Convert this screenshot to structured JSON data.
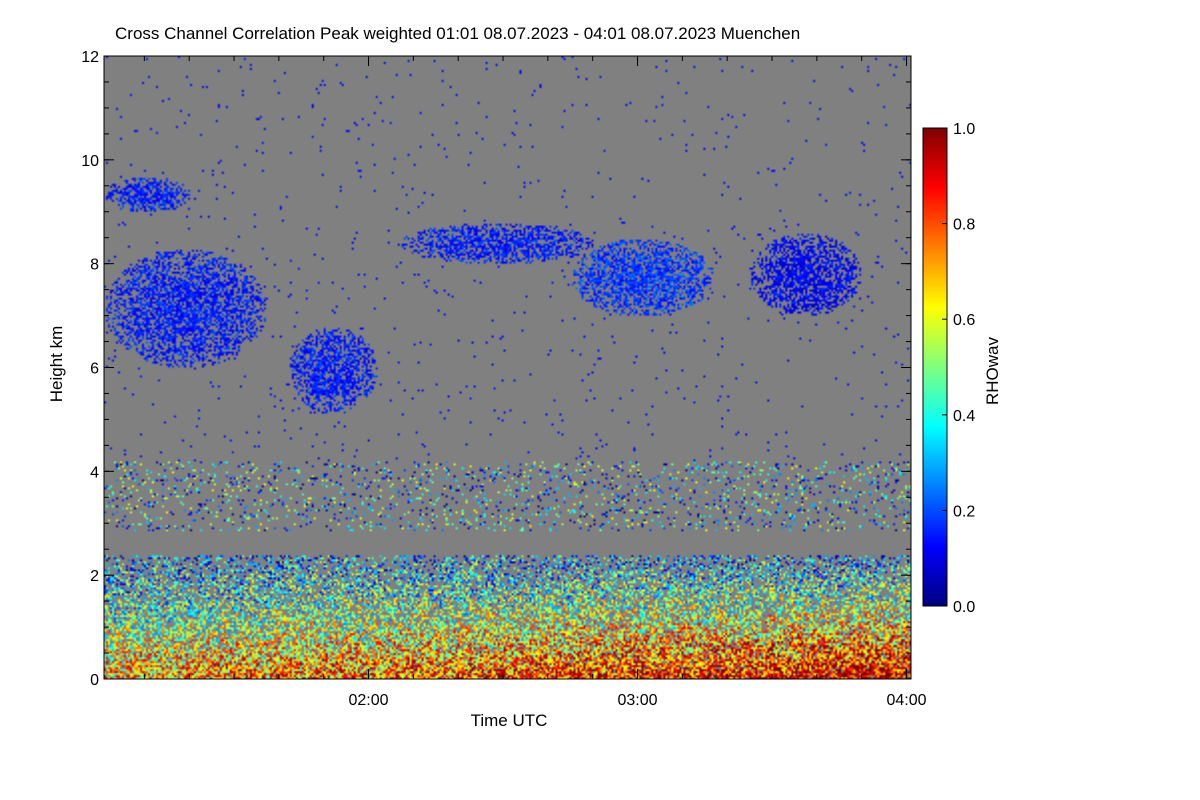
{
  "chart_data": {
    "type": "heatmap",
    "title": "Cross Channel Correlation Peak weighted   01:01 08.07.2023 - 04:01 08.07.2023 Muenchen",
    "xlabel": "Time UTC",
    "ylabel": "Height km",
    "colorbar_label": "RHOwav",
    "x_range": [
      "01:01",
      "04:01"
    ],
    "x_ticks": [
      "02:00",
      "03:00",
      "04:00"
    ],
    "x_tick_minutes_since_0101": [
      59,
      119,
      179
    ],
    "y_range": [
      0,
      12
    ],
    "y_ticks": [
      "0",
      "2",
      "4",
      "6",
      "8",
      "10",
      "12"
    ],
    "y_tick_values": [
      0,
      2,
      4,
      6,
      8,
      10,
      12
    ],
    "colorbar_range": [
      0.0,
      1.0
    ],
    "colorbar_ticks": [
      "0.0",
      "0.2",
      "0.4",
      "0.6",
      "0.8",
      "1.0"
    ],
    "colorbar_tick_values": [
      0.0,
      0.2,
      0.4,
      0.6,
      0.8,
      1.0
    ],
    "background_color": "#808080",
    "colormap": [
      "#00007f",
      "#0000ff",
      "#007fff",
      "#00ffff",
      "#7fff7f",
      "#ffff00",
      "#ff7f00",
      "#ff0000",
      "#7f0000"
    ],
    "features": [
      {
        "name": "cloud layer",
        "time_start": "01:01",
        "time_end": "01:20",
        "height_km": [
          9.0,
          9.7
        ],
        "rho": 0.15
      },
      {
        "name": "cloud layer",
        "time_start": "01:01",
        "time_end": "01:37",
        "height_km": [
          6.0,
          8.3
        ],
        "rho": 0.15
      },
      {
        "name": "cloud layer",
        "time_start": "01:42",
        "time_end": "02:02",
        "height_km": [
          5.1,
          6.8
        ],
        "rho": 0.15
      },
      {
        "name": "cloud layer",
        "time_start": "02:07",
        "time_end": "02:50",
        "height_km": [
          8.0,
          8.8
        ],
        "rho": 0.15
      },
      {
        "name": "cloud layer",
        "time_start": "02:45",
        "time_end": "03:17",
        "height_km": [
          7.0,
          8.5
        ],
        "rho": 0.18
      },
      {
        "name": "cloud layer",
        "time_start": "03:25",
        "time_end": "03:50",
        "height_km": [
          7.0,
          8.6
        ],
        "rho": 0.12
      },
      {
        "name": "aerosol layer",
        "time_start": "01:01",
        "time_end": "04:01",
        "height_km": [
          0.0,
          2.4
        ],
        "rho": 0.65
      },
      {
        "name": "residual layer",
        "time_start": "01:01",
        "time_end": "04:01",
        "height_km": [
          2.9,
          4.2
        ],
        "rho": 0.3
      }
    ]
  }
}
